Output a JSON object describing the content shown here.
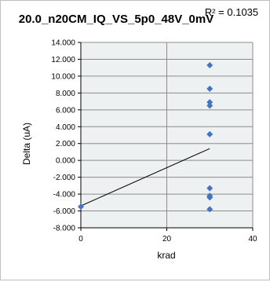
{
  "chart_data": {
    "type": "scatter",
    "title": "20.0_n20CM_IQ_VS_5p0_48V_0mV",
    "r_squared_label": "R² = 0.1035",
    "xlabel": "krad",
    "ylabel": "Delta (uA)",
    "xlim": [
      0,
      40
    ],
    "ylim": [
      -8,
      14
    ],
    "x_ticks": [
      "0",
      "20",
      "40"
    ],
    "x_tick_values": [
      0,
      20,
      40
    ],
    "y_ticks": [
      "14.000",
      "12.000",
      "10.000",
      "8.000",
      "6.000",
      "4.000",
      "2.000",
      "0.000",
      "-2.000",
      "-4.000",
      "-6.000",
      "-8.000"
    ],
    "y_tick_values": [
      14,
      12,
      10,
      8,
      6,
      4,
      2,
      0,
      -2,
      -4,
      -6,
      -8
    ],
    "grid": true,
    "series": [
      {
        "marker": "diamond",
        "color": "#4472c4",
        "points": [
          {
            "x": 0,
            "y": -5.5
          },
          {
            "x": 30,
            "y": 11.3
          },
          {
            "x": 30,
            "y": 8.5
          },
          {
            "x": 30,
            "y": 6.9
          },
          {
            "x": 30,
            "y": 6.5
          },
          {
            "x": 30,
            "y": 3.1
          },
          {
            "x": 30,
            "y": -3.3
          },
          {
            "x": 30,
            "y": -4.2
          },
          {
            "x": 30,
            "y": -4.4
          },
          {
            "x": 30,
            "y": -5.8
          }
        ]
      }
    ],
    "trendline": {
      "color": "#000000",
      "x": [
        0,
        30
      ],
      "y": [
        -5.4,
        1.4
      ]
    }
  }
}
